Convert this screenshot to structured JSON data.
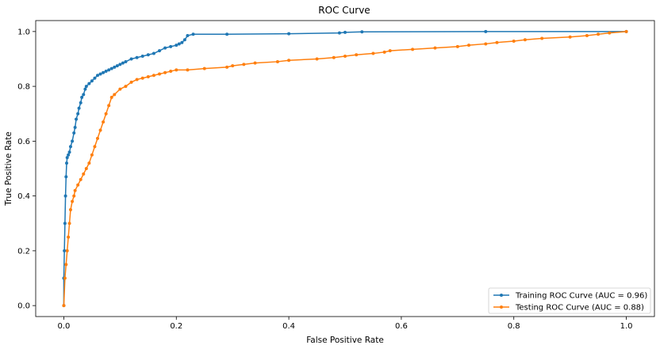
{
  "chart_data": {
    "type": "line",
    "title": "ROC Curve",
    "xlabel": "False Positive Rate",
    "ylabel": "True Positive Rate",
    "xlim": [
      -0.05,
      1.05
    ],
    "ylim": [
      -0.04,
      1.04
    ],
    "x_ticks": [
      "0.0",
      "0.2",
      "0.4",
      "0.6",
      "0.8",
      "1.0"
    ],
    "y_ticks": [
      "0.0",
      "0.2",
      "0.4",
      "0.6",
      "0.8",
      "1.0"
    ],
    "grid": false,
    "legend_position": "lower-right",
    "series": [
      {
        "name": "Training ROC Curve (AUC = 0.96)",
        "color": "#1f77b4",
        "marker": "circle",
        "x": [
          0.0,
          0.0,
          0.001,
          0.002,
          0.003,
          0.004,
          0.005,
          0.006,
          0.008,
          0.01,
          0.012,
          0.015,
          0.018,
          0.02,
          0.022,
          0.025,
          0.027,
          0.03,
          0.032,
          0.035,
          0.038,
          0.04,
          0.045,
          0.05,
          0.055,
          0.06,
          0.065,
          0.07,
          0.075,
          0.08,
          0.085,
          0.09,
          0.095,
          0.1,
          0.105,
          0.11,
          0.12,
          0.13,
          0.14,
          0.15,
          0.16,
          0.17,
          0.18,
          0.19,
          0.2,
          0.205,
          0.21,
          0.215,
          0.22,
          0.23,
          0.29,
          0.4,
          0.49,
          0.5,
          0.53,
          0.75,
          1.0
        ],
        "y": [
          0.0,
          0.1,
          0.2,
          0.3,
          0.4,
          0.47,
          0.52,
          0.54,
          0.55,
          0.56,
          0.58,
          0.6,
          0.63,
          0.65,
          0.68,
          0.7,
          0.72,
          0.74,
          0.76,
          0.77,
          0.79,
          0.8,
          0.81,
          0.82,
          0.83,
          0.84,
          0.845,
          0.85,
          0.855,
          0.86,
          0.865,
          0.87,
          0.875,
          0.88,
          0.885,
          0.89,
          0.9,
          0.905,
          0.91,
          0.915,
          0.92,
          0.93,
          0.94,
          0.945,
          0.95,
          0.955,
          0.96,
          0.97,
          0.985,
          0.99,
          0.99,
          0.992,
          0.995,
          0.997,
          0.999,
          1.0,
          1.0
        ]
      },
      {
        "name": "Testing ROC Curve (AUC = 0.88)",
        "color": "#ff7f0e",
        "marker": "circle",
        "x": [
          0.0,
          0.002,
          0.004,
          0.006,
          0.008,
          0.01,
          0.012,
          0.015,
          0.018,
          0.02,
          0.025,
          0.03,
          0.035,
          0.04,
          0.045,
          0.05,
          0.055,
          0.06,
          0.065,
          0.07,
          0.075,
          0.08,
          0.085,
          0.09,
          0.1,
          0.11,
          0.12,
          0.13,
          0.14,
          0.15,
          0.16,
          0.17,
          0.18,
          0.19,
          0.2,
          0.22,
          0.25,
          0.29,
          0.3,
          0.32,
          0.34,
          0.38,
          0.4,
          0.45,
          0.48,
          0.5,
          0.52,
          0.55,
          0.57,
          0.58,
          0.62,
          0.66,
          0.7,
          0.72,
          0.75,
          0.77,
          0.8,
          0.82,
          0.85,
          0.9,
          0.93,
          0.95,
          0.97,
          1.0
        ],
        "y": [
          0.0,
          0.1,
          0.15,
          0.2,
          0.25,
          0.3,
          0.35,
          0.38,
          0.4,
          0.42,
          0.44,
          0.46,
          0.48,
          0.5,
          0.52,
          0.55,
          0.58,
          0.61,
          0.64,
          0.67,
          0.7,
          0.73,
          0.76,
          0.77,
          0.79,
          0.8,
          0.815,
          0.825,
          0.83,
          0.835,
          0.84,
          0.845,
          0.85,
          0.855,
          0.86,
          0.86,
          0.865,
          0.87,
          0.875,
          0.88,
          0.885,
          0.89,
          0.895,
          0.9,
          0.905,
          0.91,
          0.915,
          0.92,
          0.925,
          0.93,
          0.935,
          0.94,
          0.945,
          0.95,
          0.955,
          0.96,
          0.965,
          0.97,
          0.975,
          0.98,
          0.985,
          0.99,
          0.995,
          1.0
        ]
      }
    ]
  }
}
